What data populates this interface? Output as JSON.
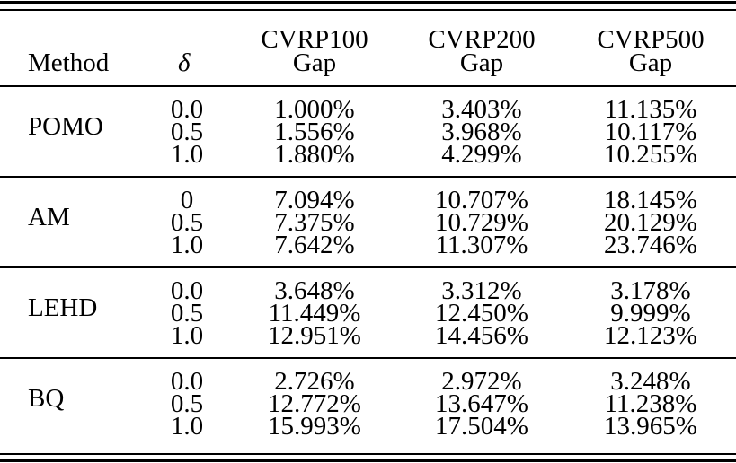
{
  "table": {
    "headers": {
      "method": "Method",
      "delta": "δ",
      "cvrp100": [
        "CVRP100",
        "Gap"
      ],
      "cvrp200": [
        "CVRP200",
        "Gap"
      ],
      "cvrp500": [
        "CVRP500",
        "Gap"
      ]
    },
    "groups": [
      {
        "method": "POMO",
        "deltas": [
          "0.0",
          "0.5",
          "1.0"
        ],
        "cvrp100": [
          "1.000%",
          "1.556%",
          "1.880%"
        ],
        "cvrp200": [
          "3.403%",
          "3.968%",
          "4.299%"
        ],
        "cvrp500": [
          "11.135%",
          "10.117%",
          "10.255%"
        ]
      },
      {
        "method": "AM",
        "deltas": [
          "0",
          "0.5",
          "1.0"
        ],
        "cvrp100": [
          "7.094%",
          "7.375%",
          "7.642%"
        ],
        "cvrp200": [
          "10.707%",
          "10.729%",
          "11.307%"
        ],
        "cvrp500": [
          "18.145%",
          "20.129%",
          "23.746%"
        ]
      },
      {
        "method": "LEHD",
        "deltas": [
          "0.0",
          "0.5",
          "1.0"
        ],
        "cvrp100": [
          "3.648%",
          "11.449%",
          "12.951%"
        ],
        "cvrp200": [
          "3.312%",
          "12.450%",
          "14.456%"
        ],
        "cvrp500": [
          "3.178%",
          "9.999%",
          "12.123%"
        ]
      },
      {
        "method": "BQ",
        "deltas": [
          "0.0",
          "0.5",
          "1.0"
        ],
        "cvrp100": [
          "2.726%",
          "12.772%",
          "15.993%"
        ],
        "cvrp200": [
          "2.972%",
          "13.647%",
          "17.504%"
        ],
        "cvrp500": [
          "3.248%",
          "11.238%",
          "13.965%"
        ]
      }
    ]
  }
}
